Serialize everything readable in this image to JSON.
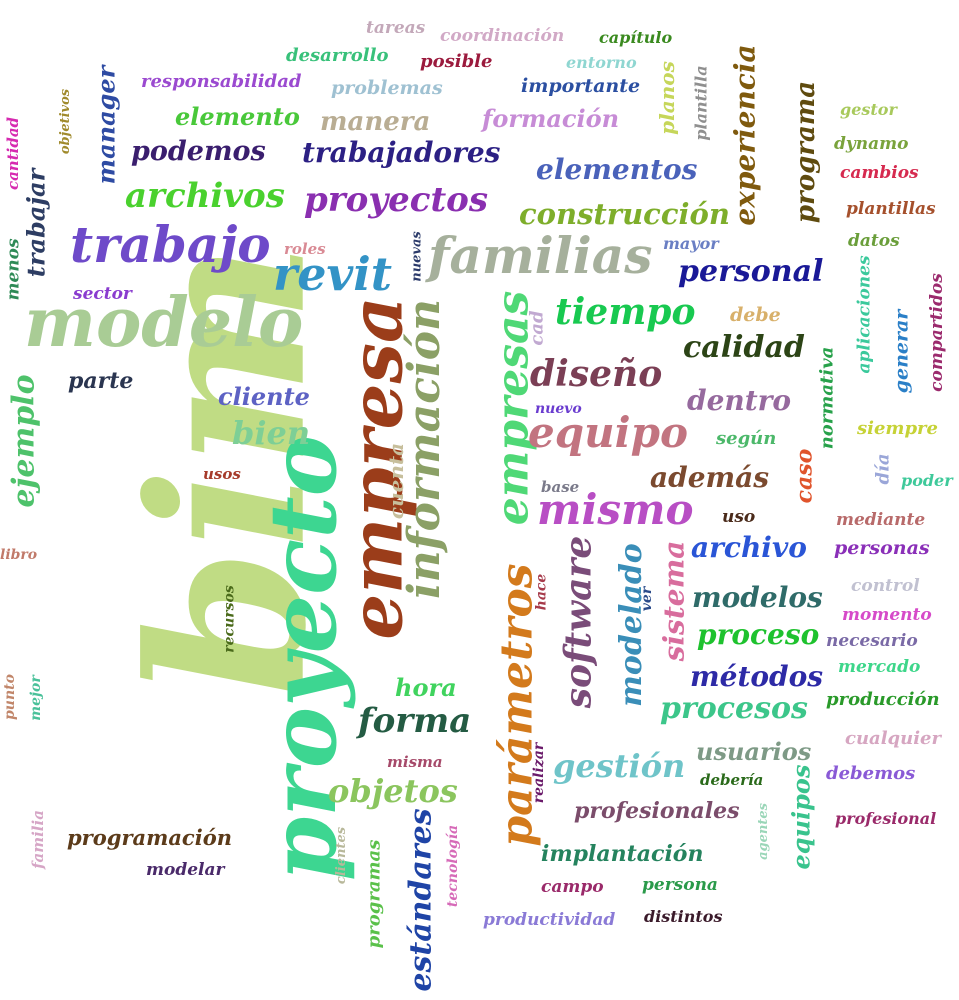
{
  "words": [
    {
      "text": "bim",
      "color": "#c0dc84"
    },
    {
      "text": "proyecto",
      "color": "#3dd691"
    },
    {
      "text": "empresa",
      "color": "#9b3d1a"
    },
    {
      "text": "información",
      "color": "#8ba066"
    },
    {
      "text": "modelo",
      "color": "#a9cc95"
    },
    {
      "text": "empresas",
      "color": "#4fd876"
    },
    {
      "text": "parámetros",
      "color": "#d37a1c"
    },
    {
      "text": "familias",
      "color": "#a6b09c"
    },
    {
      "text": "trabajo",
      "color": "#6e4ac9"
    },
    {
      "text": "revit",
      "color": "#3393c6"
    },
    {
      "text": "equipo",
      "color": "#c27480"
    },
    {
      "text": "mismo",
      "color": "#b84ec4"
    },
    {
      "text": "software",
      "color": "#7a4c79"
    },
    {
      "text": "proyectos",
      "color": "#8a2fb0"
    },
    {
      "text": "diseño",
      "color": "#7b3f55"
    },
    {
      "text": "tiempo",
      "color": "#18c950"
    },
    {
      "text": "estándares",
      "color": "#1f44a6"
    },
    {
      "text": "modelado",
      "color": "#3a8eb8"
    },
    {
      "text": "sistema",
      "color": "#d86d9d"
    },
    {
      "text": "archivos",
      "color": "#4ad12e"
    },
    {
      "text": "forma",
      "color": "#245b43"
    },
    {
      "text": "ejemplo",
      "color": "#4ec26b"
    },
    {
      "text": "construcción",
      "color": "#7eae2b"
    },
    {
      "text": "trabajadores",
      "color": "#2c2084"
    },
    {
      "text": "elementos",
      "color": "#4a62ba"
    },
    {
      "text": "personal",
      "color": "#1a1997"
    },
    {
      "text": "objetos",
      "color": "#8bc55e"
    },
    {
      "text": "gestión",
      "color": "#6fc4c9"
    },
    {
      "text": "procesos",
      "color": "#3cc68a"
    },
    {
      "text": "experiencia",
      "color": "#7f5a0e"
    },
    {
      "text": "programa",
      "color": "#5f4b0f"
    },
    {
      "text": "calidad",
      "color": "#2c4416"
    },
    {
      "text": "podemos",
      "color": "#3a1e6e"
    },
    {
      "text": "manera",
      "color": "#b9ad93"
    },
    {
      "text": "dentro",
      "color": "#966a9e"
    },
    {
      "text": "además",
      "color": "#7b4a2f"
    },
    {
      "text": "archivo",
      "color": "#2a55d6"
    },
    {
      "text": "modelos",
      "color": "#2f6b69"
    },
    {
      "text": "proceso",
      "color": "#1ec22e"
    },
    {
      "text": "métodos",
      "color": "#2d2aa6"
    },
    {
      "text": "bien",
      "color": "#7dcf96"
    },
    {
      "text": "cliente",
      "color": "#5d62c4"
    },
    {
      "text": "trabajar",
      "color": "#2d3d63"
    },
    {
      "text": "manager",
      "color": "#2e4ba3"
    },
    {
      "text": "formación",
      "color": "#c78cd6"
    },
    {
      "text": "usuarios",
      "color": "#7e9a86"
    },
    {
      "text": "equipos",
      "color": "#39c38d"
    },
    {
      "text": "elemento",
      "color": "#49c83a"
    },
    {
      "text": "hora",
      "color": "#40d35e"
    },
    {
      "text": "profesionales",
      "color": "#7b4d6b"
    },
    {
      "text": "implantación",
      "color": "#25835e"
    },
    {
      "text": "programación",
      "color": "#5c3b1a"
    },
    {
      "text": "cuenta",
      "color": "#c7bf9c"
    },
    {
      "text": "caso",
      "color": "#e0542c"
    },
    {
      "text": "normativa",
      "color": "#27a14a"
    },
    {
      "text": "aplicaciones",
      "color": "#3bc99c"
    },
    {
      "text": "generar",
      "color": "#2a7fc7"
    },
    {
      "text": "compartidos",
      "color": "#9b2a6d"
    },
    {
      "text": "planos",
      "color": "#c6d65a"
    },
    {
      "text": "plantilla",
      "color": "#8f8f8f"
    },
    {
      "text": "parte",
      "color": "#2a3550"
    },
    {
      "text": "importante",
      "color": "#2b4fa1"
    },
    {
      "text": "responsabilidad",
      "color": "#9b4ad0"
    },
    {
      "text": "desarrollo",
      "color": "#38c17a"
    },
    {
      "text": "problemas",
      "color": "#9fc1d2"
    },
    {
      "text": "posible",
      "color": "#9b1a3d"
    },
    {
      "text": "coordinación",
      "color": "#d1a9c6"
    },
    {
      "text": "tareas",
      "color": "#c3a8b9"
    },
    {
      "text": "capítulo",
      "color": "#3a8a1f"
    },
    {
      "text": "entorno",
      "color": "#8fd6d1"
    },
    {
      "text": "gestor",
      "color": "#a8c95c"
    },
    {
      "text": "dynamo",
      "color": "#7aa33c"
    },
    {
      "text": "cambios",
      "color": "#d62a4f"
    },
    {
      "text": "plantillas",
      "color": "#a5502c"
    },
    {
      "text": "datos",
      "color": "#6a9e3a"
    },
    {
      "text": "mayor",
      "color": "#6a7fc4"
    },
    {
      "text": "roles",
      "color": "#d98a94"
    },
    {
      "text": "nuevas",
      "color": "#2b3a6a"
    },
    {
      "text": "sector",
      "color": "#8a3ccf"
    },
    {
      "text": "menos",
      "color": "#2e8a56"
    },
    {
      "text": "cantidad",
      "color": "#d62ab0"
    },
    {
      "text": "objetivos",
      "color": "#a08a2c"
    },
    {
      "text": "cad",
      "color": "#c1a9d1"
    },
    {
      "text": "debe",
      "color": "#d8b06a"
    },
    {
      "text": "siempre",
      "color": "#c6d236"
    },
    {
      "text": "según",
      "color": "#4cb86a"
    },
    {
      "text": "nuevo",
      "color": "#6a3ccf"
    },
    {
      "text": "base",
      "color": "#7a7a8a"
    },
    {
      "text": "uso",
      "color": "#4a2a1a"
    },
    {
      "text": "día",
      "color": "#9aa6d8"
    },
    {
      "text": "poder",
      "color": "#3ec99a"
    },
    {
      "text": "mediante",
      "color": "#b86a6a"
    },
    {
      "text": "personas",
      "color": "#8a2fb8"
    },
    {
      "text": "control",
      "color": "#c1c1d1"
    },
    {
      "text": "momento",
      "color": "#d64ac9"
    },
    {
      "text": "necesario",
      "color": "#7a6aa6"
    },
    {
      "text": "mercado",
      "color": "#3dd68a"
    },
    {
      "text": "producción",
      "color": "#2a9a2a"
    },
    {
      "text": "cualquier",
      "color": "#d6a6c1"
    },
    {
      "text": "debemos",
      "color": "#8a5ad6"
    },
    {
      "text": "profesional",
      "color": "#9a2a6a"
    },
    {
      "text": "debería",
      "color": "#2a6a1a"
    },
    {
      "text": "agentes",
      "color": "#9ad6b8"
    },
    {
      "text": "usos",
      "color": "#a63a2a"
    },
    {
      "text": "libro",
      "color": "#c17a6a"
    },
    {
      "text": "recursos",
      "color": "#4a6a1a"
    },
    {
      "text": "punto",
      "color": "#c1866a"
    },
    {
      "text": "mejor",
      "color": "#4ac19a"
    },
    {
      "text": "hace",
      "color": "#a63a4a"
    },
    {
      "text": "ver",
      "color": "#2a4a8a"
    },
    {
      "text": "misma",
      "color": "#a64a6a"
    },
    {
      "text": "realizar",
      "color": "#6a1a6a"
    },
    {
      "text": "familia",
      "color": "#d6a6c6"
    },
    {
      "text": "clientes",
      "color": "#b8b89a"
    },
    {
      "text": "programas",
      "color": "#5ac14a"
    },
    {
      "text": "tecnología",
      "color": "#d66ab8"
    },
    {
      "text": "modelar",
      "color": "#4a2a6a"
    },
    {
      "text": "campo",
      "color": "#9a2a6a"
    },
    {
      "text": "persona",
      "color": "#2a9a4a"
    },
    {
      "text": "productividad",
      "color": "#8a7ad6"
    },
    {
      "text": "distintos",
      "color": "#3a1a2a"
    }
  ]
}
